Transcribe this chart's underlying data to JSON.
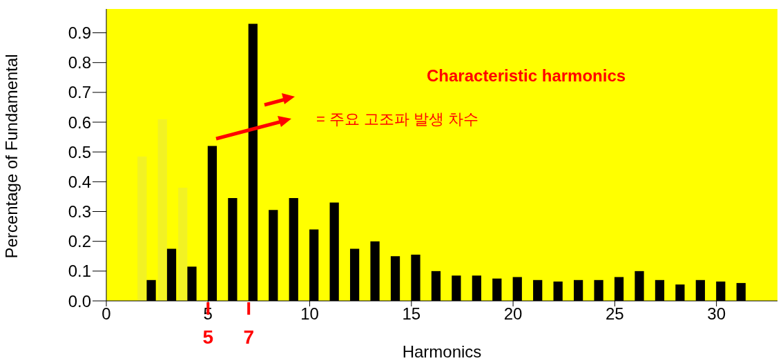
{
  "chart_data": {
    "type": "bar",
    "xlabel": "Harmonics",
    "ylabel": "Percentage of Fundamental",
    "x": [
      2,
      3,
      4,
      5,
      6,
      7,
      8,
      9,
      10,
      11,
      12,
      13,
      14,
      15,
      16,
      17,
      18,
      19,
      20,
      21,
      22,
      23,
      24,
      25,
      26,
      27,
      28,
      29,
      30,
      31
    ],
    "series": [
      {
        "color": "#f2f224",
        "values": [
          0.485,
          0.61,
          0.38,
          null,
          null,
          null,
          null,
          null,
          null,
          null,
          null,
          null,
          null,
          null,
          null,
          null,
          null,
          null,
          null,
          null,
          null,
          null,
          null,
          null,
          null,
          null,
          null,
          null,
          null,
          null
        ]
      },
      {
        "color": "#000000",
        "values": [
          0.07,
          0.175,
          0.115,
          0.52,
          0.345,
          0.93,
          0.305,
          0.345,
          0.24,
          0.33,
          0.175,
          0.2,
          0.15,
          0.155,
          0.1,
          0.085,
          0.085,
          0.075,
          0.08,
          0.07,
          0.065,
          0.07,
          0.07,
          0.08,
          0.1,
          0.07,
          0.055,
          0.07,
          0.065,
          0.06
        ]
      }
    ],
    "xlim": [
      0,
      33
    ],
    "xticks": [
      0,
      5,
      10,
      15,
      20,
      25,
      30
    ],
    "ylim": [
      0,
      0.98
    ],
    "yticks": [
      {
        "value": 0,
        "label": "0.0"
      },
      0.1,
      0.2,
      0.3,
      0.4,
      0.5,
      0.6,
      0.7,
      0.8,
      0.9
    ],
    "grid": false,
    "legend": false,
    "annotations": [
      "Characteristic harmonics",
      "= 주요 고조파 발생 차수",
      {
        "text": "5",
        "x": 5,
        "y": 0
      },
      {
        "text": "7",
        "x": 7,
        "y": 0
      }
    ]
  }
}
